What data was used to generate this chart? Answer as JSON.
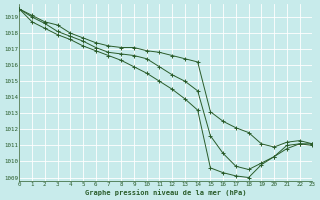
{
  "xlabel": "Graphe pression niveau de la mer (hPa)",
  "ylim": [
    1008.8,
    1019.8
  ],
  "xlim": [
    0,
    23
  ],
  "ytick_vals": [
    1009,
    1010,
    1011,
    1012,
    1013,
    1014,
    1015,
    1016,
    1017,
    1018,
    1019
  ],
  "xtick_vals": [
    0,
    1,
    2,
    3,
    4,
    5,
    6,
    7,
    8,
    9,
    10,
    11,
    12,
    13,
    14,
    15,
    16,
    17,
    18,
    19,
    20,
    21,
    22,
    23
  ],
  "bg_color": "#c8ebeb",
  "grid_color": "#aad8d8",
  "line_color": "#2a5c2a",
  "lines": [
    [
      1019.5,
      1019.1,
      1018.7,
      1018.5,
      1018.0,
      1017.7,
      1017.4,
      1017.2,
      1017.1,
      1017.1,
      1016.9,
      1016.8,
      1016.6,
      1016.4,
      1016.2,
      1013.1,
      1012.5,
      1012.1,
      1011.8,
      1011.1,
      1010.9,
      1011.2,
      1011.3,
      1011.1
    ],
    [
      1019.5,
      1019.0,
      1018.6,
      1018.1,
      1017.8,
      1017.5,
      1017.1,
      1016.8,
      1016.7,
      1016.6,
      1016.4,
      1015.9,
      1015.4,
      1015.0,
      1014.4,
      1011.6,
      1010.5,
      1009.7,
      1009.5,
      1009.9,
      1010.3,
      1011.0,
      1011.1,
      1011.0
    ],
    [
      1019.5,
      1018.7,
      1018.3,
      1017.9,
      1017.6,
      1017.2,
      1016.9,
      1016.6,
      1016.3,
      1015.9,
      1015.5,
      1015.0,
      1014.5,
      1013.9,
      1013.2,
      1009.6,
      1009.3,
      1009.1,
      1009.0,
      1009.8,
      1010.3,
      1010.8,
      1011.1,
      1011.1
    ]
  ]
}
